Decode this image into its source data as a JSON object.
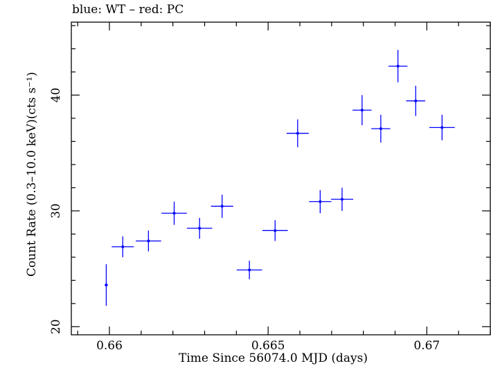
{
  "chart_data": {
    "type": "scatter",
    "title": "blue: WT – red: PC",
    "xlabel": "Time Since 56074.0 MJD (days)",
    "ylabel": "Count Rate (0.3–10.0 keV)(cts s⁻¹)",
    "xlim": [
      0.6588,
      0.672
    ],
    "ylim": [
      19.3,
      46.3
    ],
    "xticks": [
      0.66,
      0.665,
      0.67
    ],
    "xtick_labels": [
      "0.66",
      "0.665",
      "0.67"
    ],
    "yticks": [
      20,
      30,
      40
    ],
    "ytick_labels": [
      "20",
      "30",
      "40"
    ],
    "grid": false,
    "series": [
      {
        "color": "#0000ff",
        "points": [
          {
            "x": 0.6599,
            "y": 23.6,
            "xerr": 5e-05,
            "yerr": 1.8
          },
          {
            "x": 0.66042,
            "y": 26.9,
            "xerr": 0.00035,
            "yerr": 0.9
          },
          {
            "x": 0.66123,
            "y": 27.4,
            "xerr": 0.0004,
            "yerr": 0.9
          },
          {
            "x": 0.66204,
            "y": 29.8,
            "xerr": 0.0004,
            "yerr": 1.0
          },
          {
            "x": 0.66284,
            "y": 28.5,
            "xerr": 0.0004,
            "yerr": 0.9
          },
          {
            "x": 0.66355,
            "y": 30.4,
            "xerr": 0.00035,
            "yerr": 1.0
          },
          {
            "x": 0.66441,
            "y": 24.9,
            "xerr": 0.0004,
            "yerr": 0.8
          },
          {
            "x": 0.66522,
            "y": 28.3,
            "xerr": 0.0004,
            "yerr": 0.9
          },
          {
            "x": 0.66593,
            "y": 36.7,
            "xerr": 0.00035,
            "yerr": 1.2
          },
          {
            "x": 0.66664,
            "y": 30.8,
            "xerr": 0.00035,
            "yerr": 1.0
          },
          {
            "x": 0.66733,
            "y": 31.0,
            "xerr": 0.00035,
            "yerr": 1.0
          },
          {
            "x": 0.66796,
            "y": 38.7,
            "xerr": 0.0003,
            "yerr": 1.3
          },
          {
            "x": 0.66855,
            "y": 37.1,
            "xerr": 0.0003,
            "yerr": 1.2
          },
          {
            "x": 0.66909,
            "y": 42.5,
            "xerr": 0.0003,
            "yerr": 1.4
          },
          {
            "x": 0.66965,
            "y": 39.5,
            "xerr": 0.0003,
            "yerr": 1.3
          },
          {
            "x": 0.67048,
            "y": 37.2,
            "xerr": 0.0004,
            "yerr": 1.1
          }
        ]
      }
    ]
  }
}
